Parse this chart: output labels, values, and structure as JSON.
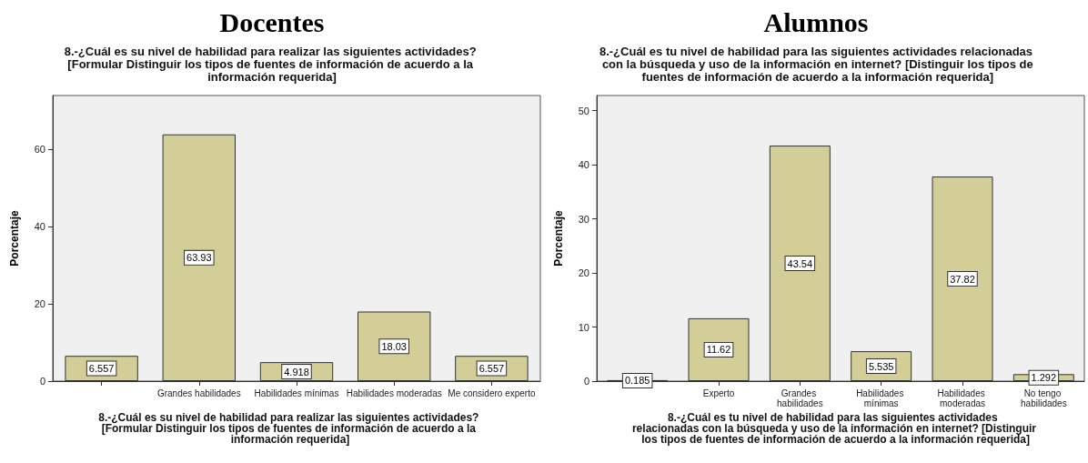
{
  "chart_data": [
    {
      "type": "bar",
      "title": "Docentes",
      "subtitle": "8.-¿Cuál es su nivel de habilidad para realizar las siguientes actividades? [Formular Distinguir los tipos de fuentes de información de acuerdo a la información requerida]",
      "xlabel": "8.-¿Cuál es su nivel de habilidad para realizar las siguientes actividades? [Formular Distinguir los tipos de fuentes de información de acuerdo a la información requerida]",
      "ylabel": "Porcentaje",
      "categories": [
        null,
        "Grandes habilidades",
        "Habilidades mínimas",
        "Habilidades moderadas",
        "Me considero experto"
      ],
      "values": [
        6.557,
        63.93,
        4.918,
        18.03,
        6.557
      ],
      "color": "#d3ce97",
      "ylim": [
        0,
        74
      ],
      "yticks": [
        0,
        20,
        40,
        60
      ],
      "grid": false,
      "data_labels": true
    },
    {
      "type": "bar",
      "title": "Alumnos",
      "subtitle": "8.-¿Cuál es tu nivel de habilidad para las siguientes actividades relacionadas con la búsqueda y uso de la información en internet? [Distinguir los tipos de fuentes de información de acuerdo a la información requerida]",
      "xlabel": "8.-¿Cuál es tu nivel de habilidad para las siguientes actividades relacionadas con la búsqueda y uso de la información en internet? [Distinguir los tipos de fuentes de información de acuerdo a la información requerida]",
      "ylabel": "Porcentaje",
      "categories": [
        null,
        "Experto",
        "Grandes habilidades",
        "Habilidades mínimas",
        "Habilidades moderadas",
        "No tengo habilidades"
      ],
      "values": [
        0.185,
        11.62,
        43.54,
        5.535,
        37.82,
        1.292
      ],
      "color": "#d3ce97",
      "ylim": [
        0,
        52.8
      ],
      "yticks": [
        0,
        10,
        20,
        30,
        40,
        50
      ],
      "grid": false,
      "data_labels": true
    }
  ]
}
